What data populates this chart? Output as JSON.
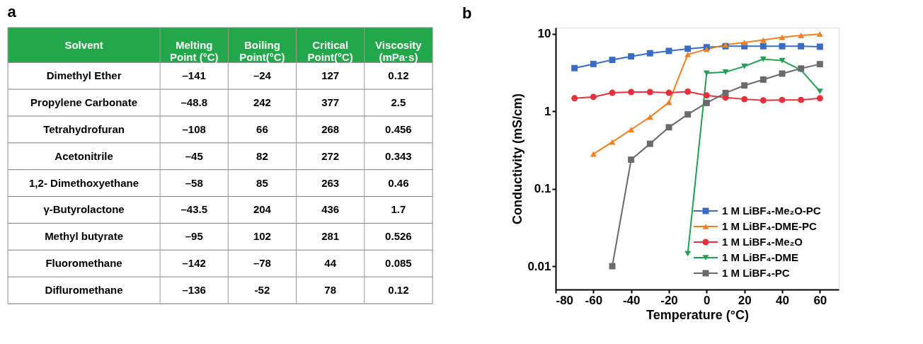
{
  "chart_data": [
    {
      "type": "other",
      "title": "a",
      "ylabel": "Solvent",
      "color": "#22a84a",
      "categories": [
        "Melting Point (°C)",
        "Boiling Point(°C)",
        "Critical Point(°C)",
        "Viscosity (mPa·s)"
      ],
      "y_categories": [
        "Dimethyl Ether",
        "Propylene Carbonate",
        "Tetrahydrofuran",
        "Acetonitrile",
        "1,2- Dimethoxyethane",
        "γ-Butyrolactone",
        "Methyl butyrate",
        "Fluoromethane",
        "Difluromethane"
      ],
      "cell_labels": [
        [
          "–141",
          "–24",
          "127",
          "0.12"
        ],
        [
          "–48.8",
          "242",
          "377",
          "2.5"
        ],
        [
          "–108",
          "66",
          "268",
          "0.456"
        ],
        [
          "–45",
          "82",
          "272",
          "0.343"
        ],
        [
          "–58",
          "85",
          "263",
          "0.46"
        ],
        [
          "–43.5",
          "204",
          "436",
          "1.7"
        ],
        [
          "–95",
          "102",
          "281",
          "0.526"
        ],
        [
          "–142",
          "–78",
          "44",
          "0.085"
        ],
        [
          "–136",
          "-52",
          "78",
          "0.12"
        ]
      ]
    },
    {
      "type": "line",
      "title": "b",
      "xlabel": "Temperature (°C)",
      "ylabel": "Conductivity (mS/cm)",
      "log": "y",
      "xlim": [
        -80,
        70
      ],
      "xticks": [
        -80,
        -60,
        -40,
        -20,
        0,
        20,
        40,
        60
      ],
      "ylim": [
        0.005,
        12
      ],
      "yticks": [
        0.01,
        0.1,
        1,
        10
      ],
      "grid": false,
      "legend": "bottom right",
      "series": [
        {
          "name": "1 M LiBF₄-Me₂O-PC",
          "color": "#3a6cc4",
          "marker": "square",
          "x": [
            -70,
            -60,
            -50,
            -40,
            -30,
            -20,
            -10,
            0,
            10,
            20,
            30,
            40,
            50,
            60
          ],
          "values": [
            3.6,
            4.07,
            4.6,
            5.1,
            5.6,
            6.0,
            6.4,
            6.7,
            6.9,
            6.9,
            6.9,
            6.9,
            6.9,
            6.8
          ]
        },
        {
          "name": "1 M LiBF₄-DME-PC",
          "color": "#f08020",
          "marker": "triangle",
          "x": [
            -60,
            -50,
            -40,
            -30,
            -20,
            -10,
            0,
            10,
            20,
            30,
            40,
            50,
            60
          ],
          "values": [
            0.28,
            0.4,
            0.58,
            0.84,
            1.3,
            5.4,
            6.3,
            7.2,
            7.7,
            8.3,
            9.0,
            9.5,
            9.9
          ]
        },
        {
          "name": "1 M LiBF₄-Me₂O",
          "color": "#e8303c",
          "marker": "circle",
          "x": [
            -70,
            -60,
            -50,
            -40,
            -30,
            -20,
            -10,
            0,
            10,
            20,
            30,
            40,
            50,
            60
          ],
          "values": [
            1.47,
            1.53,
            1.73,
            1.77,
            1.77,
            1.73,
            1.79,
            1.6,
            1.5,
            1.43,
            1.38,
            1.4,
            1.4,
            1.47
          ]
        },
        {
          "name": "1 M LiBF₄-DME",
          "color": "#20a050",
          "marker": "triangle-down",
          "x": [
            -10,
            0,
            10,
            20,
            30,
            40,
            50,
            60
          ],
          "values": [
            0.0145,
            3.1,
            3.2,
            3.8,
            4.7,
            4.5,
            3.4,
            1.8
          ]
        },
        {
          "name": "1 M LiBF₄-PC",
          "color": "#6a6a6a",
          "marker": "square",
          "x": [
            -50,
            -40,
            -30,
            -20,
            -10,
            0,
            10,
            20,
            30,
            40,
            50,
            60
          ],
          "values": [
            0.01,
            0.237,
            0.38,
            0.62,
            0.91,
            1.28,
            1.72,
            2.15,
            2.56,
            3.06,
            3.56,
            4.05
          ]
        }
      ]
    }
  ]
}
